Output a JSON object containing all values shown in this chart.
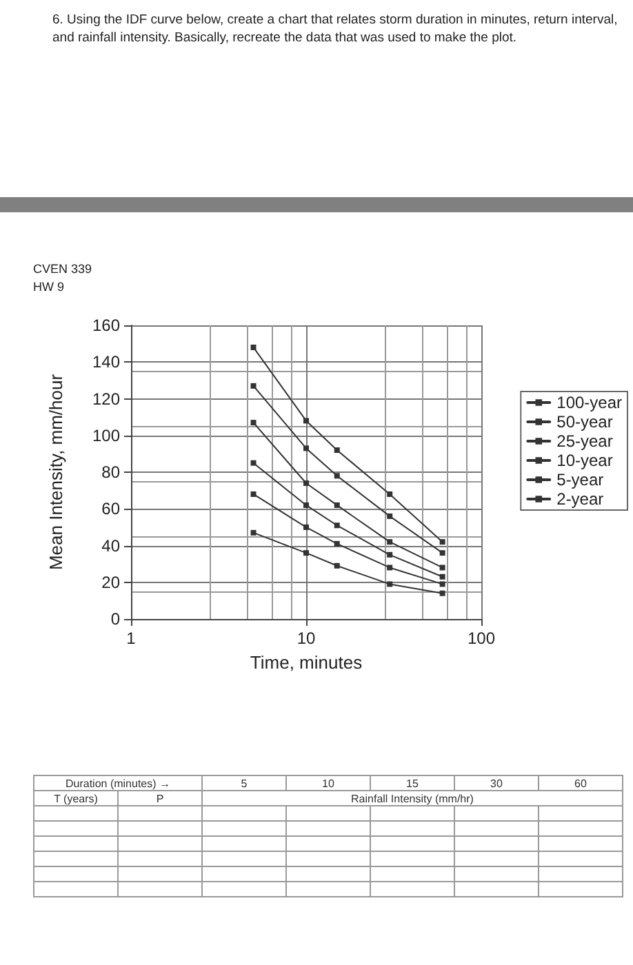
{
  "chart_data": {
    "type": "line",
    "title": "6.  Using the IDF curve below, create a chart that relates storm duration in minutes, return interval, and rainfall intensity. Basically, recreate the data that was used to make the plot.",
    "xlabel": "Time, minutes",
    "ylabel": "Mean Intensity, mm/hour",
    "x": [
      5,
      10,
      15,
      30,
      60
    ],
    "series": [
      {
        "name": "100-year",
        "color": "#333333",
        "values": [
          148,
          108,
          92,
          68,
          42
        ]
      },
      {
        "name": "50-year",
        "color": "#333333",
        "values": [
          127,
          93,
          78,
          56,
          36
        ]
      },
      {
        "name": "25-year",
        "color": "#333333",
        "values": [
          107,
          74,
          62,
          42,
          28
        ]
      },
      {
        "name": "10-year",
        "color": "#333333",
        "values": [
          85,
          62,
          51,
          35,
          23
        ]
      },
      {
        "name": "5-year",
        "color": "#333333",
        "values": [
          68,
          50,
          41,
          28,
          19
        ]
      },
      {
        "name": "2-year",
        "color": "#333333",
        "values": [
          47,
          36,
          29,
          19,
          14
        ]
      }
    ],
    "xlim": [
      1,
      100
    ],
    "xticks": [
      1,
      10,
      100
    ],
    "log": "x",
    "ylim": [
      0,
      160
    ],
    "yticks": [
      0,
      20,
      40,
      60,
      80,
      100,
      120,
      140,
      160
    ],
    "grid": true,
    "legend": "right",
    "marker": "square",
    "line_style": "solid",
    "annotations": [
      "CVEN 339",
      "HW 9",
      "Duration (minutes) →",
      "5",
      "10",
      "15",
      "30",
      "60",
      "T (years)",
      "P",
      "Rainfall Intensity (mm/hr)"
    ]
  }
}
